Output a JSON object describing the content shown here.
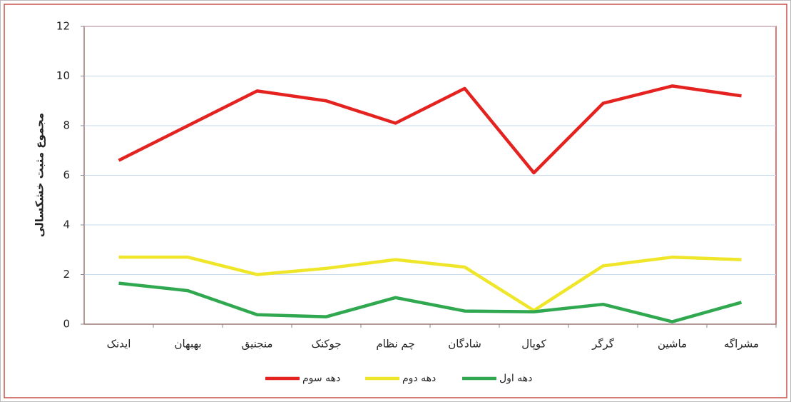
{
  "chart_data": {
    "type": "line",
    "y_label": "مجموع مثبت خشکسالی",
    "categories": [
      "ایدنک",
      "بهبهان",
      "منجنیق",
      "جوکنک",
      "چم نظام",
      "شادگان",
      "کوپال",
      "گرگر",
      "ماشین",
      "مشراگه"
    ],
    "series": [
      {
        "name": "دهه سوم",
        "color": "#e42320",
        "values": [
          6.6,
          8.0,
          9.4,
          9.0,
          8.1,
          9.5,
          6.1,
          8.9,
          9.6,
          9.2
        ]
      },
      {
        "name": "دهه دوم",
        "color": "#efe62a",
        "values": [
          2.7,
          2.7,
          2.0,
          2.25,
          2.6,
          2.3,
          0.55,
          2.35,
          2.7,
          2.6
        ]
      },
      {
        "name": "دهه اول",
        "color": "#2fa84f",
        "values": [
          1.65,
          1.35,
          0.38,
          0.3,
          1.07,
          0.53,
          0.5,
          0.8,
          0.1,
          0.88
        ]
      }
    ],
    "ylim": [
      0,
      12
    ],
    "yticks": [
      0,
      2,
      4,
      6,
      8,
      10,
      12
    ],
    "grid": true
  }
}
